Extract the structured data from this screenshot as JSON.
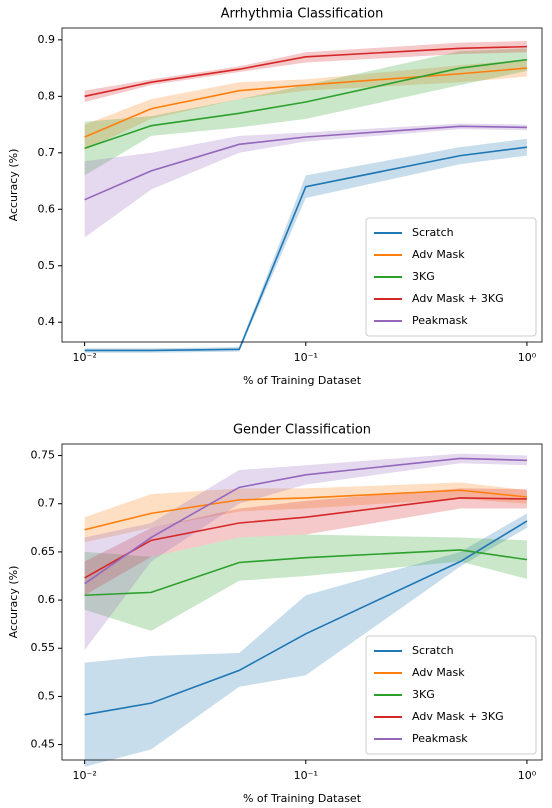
{
  "chart_data": [
    {
      "type": "line",
      "title": "Arrhythmia Classification",
      "xlabel": "% of Training Dataset",
      "ylabel": "Accuracy (%)",
      "xscale": "log",
      "legend": "lower right",
      "x": [
        0.01,
        0.02,
        0.05,
        0.1,
        0.5,
        1
      ],
      "xlim": [
        0.0079,
        1.17
      ],
      "ylim": [
        0.365,
        0.921
      ],
      "xticks": [
        {
          "value": 0.01,
          "label": "10⁻²"
        },
        {
          "value": 0.1,
          "label": "10⁻¹"
        },
        {
          "value": 1,
          "label": "10⁰"
        }
      ],
      "yticks": [
        0.4,
        0.5,
        0.6,
        0.7,
        0.8,
        0.9
      ],
      "series": [
        {
          "name": "Scratch",
          "color": "#1f77b4",
          "values": [
            0.35,
            0.35,
            0.352,
            0.64,
            0.695,
            0.71
          ],
          "lower": [
            0.346,
            0.346,
            0.348,
            0.62,
            0.68,
            0.695
          ],
          "upper": [
            0.354,
            0.354,
            0.356,
            0.66,
            0.71,
            0.725
          ]
        },
        {
          "name": "Adv Mask",
          "color": "#ff7f0e",
          "values": [
            0.728,
            0.778,
            0.81,
            0.82,
            0.84,
            0.85
          ],
          "lower": [
            0.705,
            0.76,
            0.795,
            0.81,
            0.825,
            0.835
          ],
          "upper": [
            0.75,
            0.795,
            0.825,
            0.83,
            0.855,
            0.865
          ]
        },
        {
          "name": "3KG",
          "color": "#2ca02c",
          "values": [
            0.708,
            0.748,
            0.77,
            0.79,
            0.85,
            0.865
          ],
          "lower": [
            0.66,
            0.73,
            0.745,
            0.76,
            0.82,
            0.845
          ],
          "upper": [
            0.755,
            0.765,
            0.795,
            0.82,
            0.88,
            0.885
          ]
        },
        {
          "name": "Adv Mask + 3KG",
          "color": "#d62728",
          "values": [
            0.8,
            0.825,
            0.848,
            0.87,
            0.885,
            0.888
          ],
          "lower": [
            0.79,
            0.82,
            0.843,
            0.86,
            0.875,
            0.878
          ],
          "upper": [
            0.81,
            0.83,
            0.853,
            0.878,
            0.895,
            0.898
          ]
        },
        {
          "name": "Peakmask",
          "color": "#9467bd",
          "values": [
            0.617,
            0.668,
            0.715,
            0.728,
            0.747,
            0.745
          ],
          "lower": [
            0.55,
            0.635,
            0.7,
            0.72,
            0.742,
            0.74
          ],
          "upper": [
            0.685,
            0.7,
            0.73,
            0.736,
            0.752,
            0.75
          ]
        }
      ]
    },
    {
      "type": "line",
      "title": "Gender Classification",
      "xlabel": "% of Training Dataset",
      "ylabel": "Accuracy (%)",
      "xscale": "log",
      "legend": "lower right",
      "x": [
        0.01,
        0.02,
        0.05,
        0.1,
        0.5,
        1
      ],
      "xlim": [
        0.0079,
        1.17
      ],
      "ylim": [
        0.434,
        0.762
      ],
      "xticks": [
        {
          "value": 0.01,
          "label": "10⁻²"
        },
        {
          "value": 0.1,
          "label": "10⁻¹"
        },
        {
          "value": 1,
          "label": "10⁰"
        }
      ],
      "yticks": [
        0.45,
        0.5,
        0.55,
        0.6,
        0.65,
        0.7,
        0.75
      ],
      "series": [
        {
          "name": "Scratch",
          "color": "#1f77b4",
          "values": [
            0.481,
            0.493,
            0.527,
            0.565,
            0.64,
            0.682
          ],
          "lower": [
            0.427,
            0.445,
            0.51,
            0.522,
            0.635,
            0.675
          ],
          "upper": [
            0.535,
            0.542,
            0.545,
            0.605,
            0.65,
            0.69
          ]
        },
        {
          "name": "Adv Mask",
          "color": "#ff7f0e",
          "values": [
            0.673,
            0.69,
            0.704,
            0.706,
            0.714,
            0.707
          ],
          "lower": [
            0.66,
            0.675,
            0.692,
            0.695,
            0.705,
            0.7
          ],
          "upper": [
            0.686,
            0.71,
            0.716,
            0.716,
            0.722,
            0.714
          ]
        },
        {
          "name": "3KG",
          "color": "#2ca02c",
          "values": [
            0.605,
            0.608,
            0.639,
            0.644,
            0.652,
            0.642
          ],
          "lower": [
            0.59,
            0.568,
            0.62,
            0.625,
            0.64,
            0.622
          ],
          "upper": [
            0.65,
            0.645,
            0.665,
            0.668,
            0.665,
            0.662
          ]
        },
        {
          "name": "Adv Mask + 3KG",
          "color": "#d62728",
          "values": [
            0.623,
            0.662,
            0.68,
            0.686,
            0.706,
            0.705
          ],
          "lower": [
            0.605,
            0.645,
            0.665,
            0.668,
            0.695,
            0.695
          ],
          "upper": [
            0.64,
            0.675,
            0.695,
            0.703,
            0.716,
            0.715
          ]
        },
        {
          "name": "Peakmask",
          "color": "#9467bd",
          "values": [
            0.617,
            0.665,
            0.717,
            0.73,
            0.747,
            0.745
          ],
          "lower": [
            0.548,
            0.64,
            0.7,
            0.72,
            0.742,
            0.74
          ],
          "upper": [
            0.665,
            0.68,
            0.735,
            0.74,
            0.752,
            0.75
          ]
        }
      ]
    }
  ]
}
